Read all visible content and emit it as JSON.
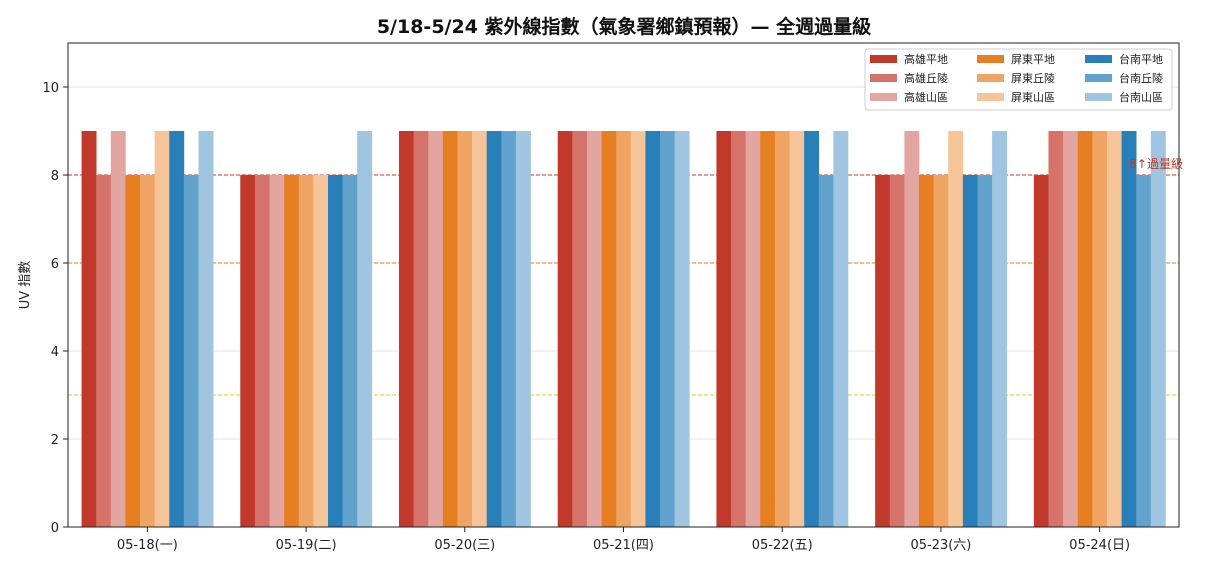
{
  "chart_data": {
    "type": "bar",
    "title": "5/18-5/24 紫外線指數（氣象署鄉鎮預報）— 全週過量級",
    "xlabel": "",
    "ylabel": "UV 指數",
    "ylim": [
      0,
      11
    ],
    "yticks": [
      0,
      2,
      4,
      6,
      8,
      10
    ],
    "grid": true,
    "legend_position": "top-right",
    "categories": [
      "05-18(一)",
      "05-19(二)",
      "05-20(三)",
      "05-21(四)",
      "05-22(五)",
      "05-23(六)",
      "05-24(日)"
    ],
    "series": [
      {
        "name": "高雄平地",
        "color": "#c0392b",
        "values": [
          9,
          8,
          9,
          9,
          9,
          8,
          8
        ]
      },
      {
        "name": "高雄丘陵",
        "color": "#d5736a",
        "values": [
          8,
          8,
          9,
          9,
          9,
          8,
          9
        ]
      },
      {
        "name": "高雄山區",
        "color": "#e3a59f",
        "values": [
          9,
          8,
          9,
          9,
          9,
          9,
          9
        ]
      },
      {
        "name": "屏東平地",
        "color": "#e67e22",
        "values": [
          8,
          8,
          9,
          9,
          9,
          8,
          9
        ]
      },
      {
        "name": "屏東丘陵",
        "color": "#f0a463",
        "values": [
          8,
          8,
          9,
          9,
          9,
          8,
          9
        ]
      },
      {
        "name": "屏東山區",
        "color": "#f5c599",
        "values": [
          9,
          8,
          9,
          9,
          9,
          9,
          9
        ]
      },
      {
        "name": "台南平地",
        "color": "#2980b9",
        "values": [
          9,
          8,
          9,
          9,
          9,
          8,
          9
        ]
      },
      {
        "name": "台南丘陵",
        "color": "#62a3cd",
        "values": [
          8,
          8,
          9,
          9,
          8,
          8,
          8
        ]
      },
      {
        "name": "台南山區",
        "color": "#9fc5e1",
        "values": [
          9,
          9,
          9,
          9,
          9,
          9,
          9
        ]
      }
    ],
    "reference_lines": [
      {
        "y": 8,
        "color": "#c0392b",
        "label": "8↑過量級"
      },
      {
        "y": 6,
        "color": "#e67e22",
        "label": ""
      },
      {
        "y": 3,
        "color": "#f1c40f",
        "label": ""
      }
    ]
  }
}
